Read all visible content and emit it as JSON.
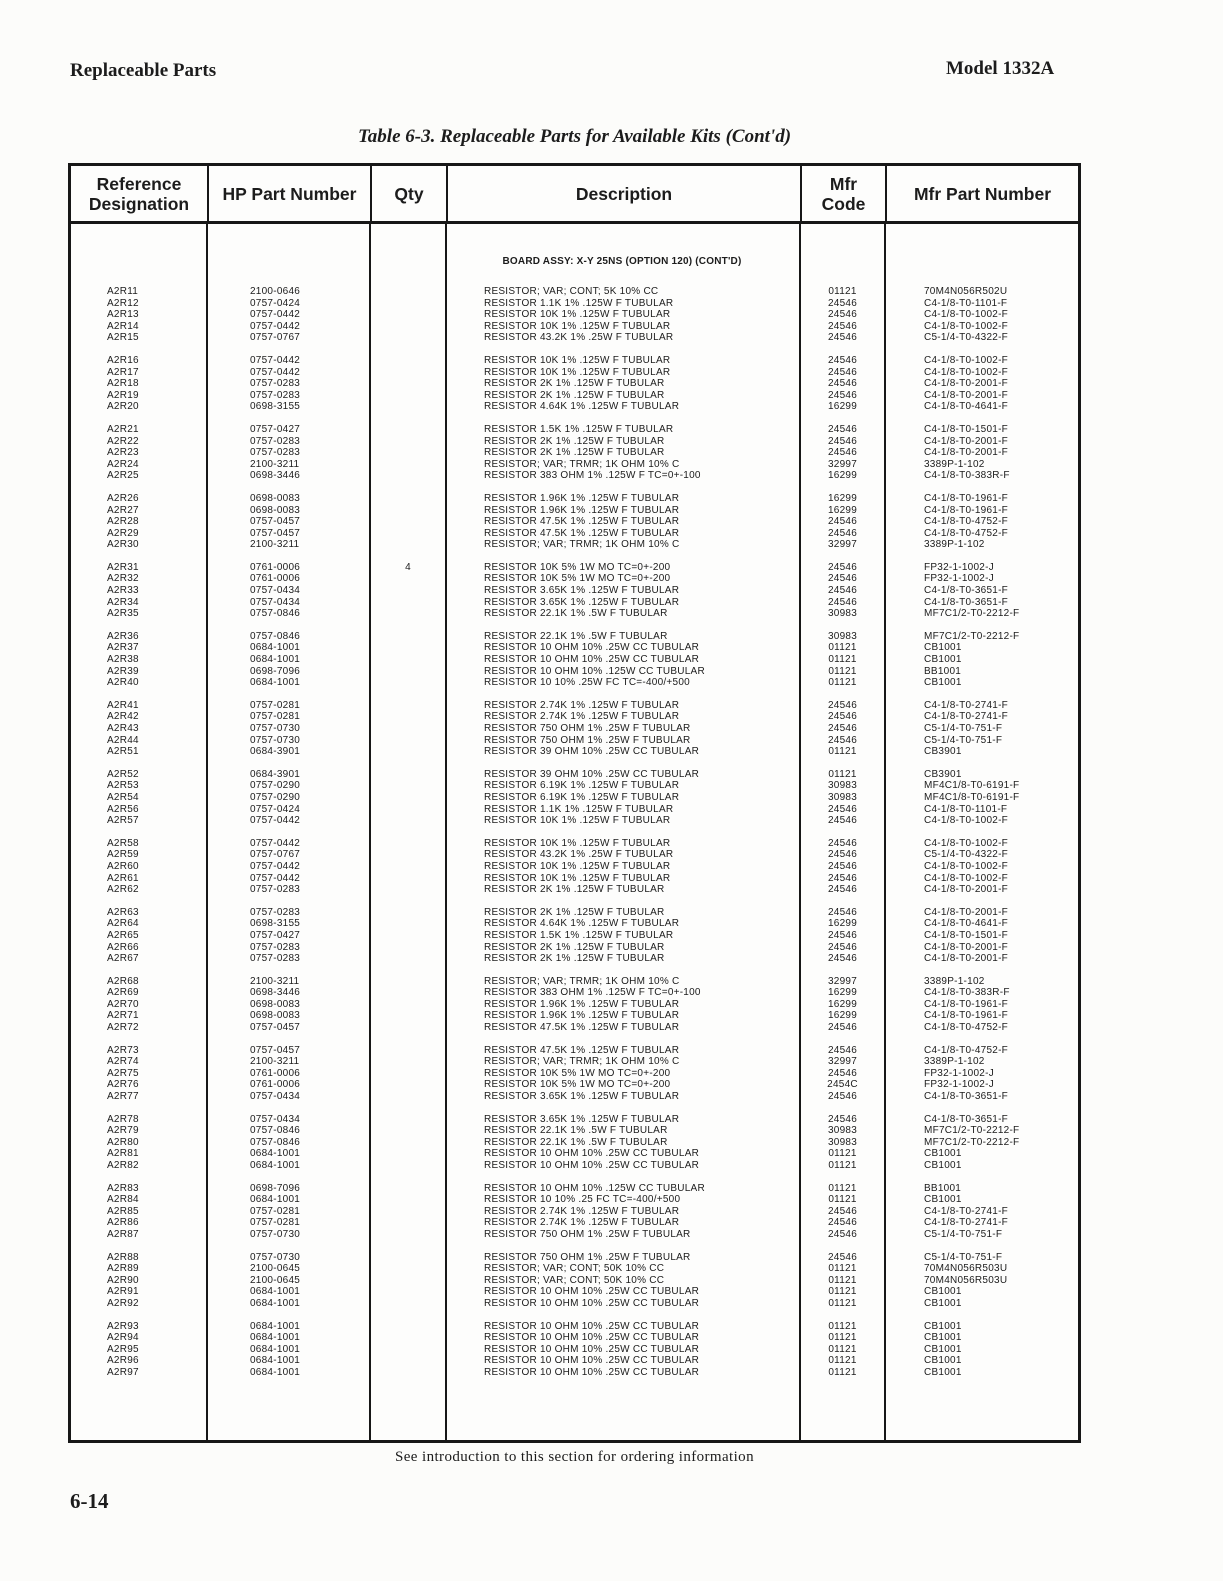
{
  "page": {
    "header_left": "Replaceable Parts",
    "header_right": "Model 1332A",
    "table_title": "Table 6-3. Replaceable Parts for Available Kits (Cont'd)",
    "footer_note": "See introduction to this section for ordering information",
    "page_number": "6-14"
  },
  "table": {
    "columns": [
      "Reference\nDesignation",
      "HP Part Number",
      "Qty",
      "Description",
      "Mfr\nCode",
      "Mfr Part Number"
    ],
    "section_header": "BOARD ASSY: X-Y 25NS (OPTION 120) (CONT'D)",
    "groups": [
      [
        [
          "A2R11",
          "2100-0646",
          "",
          "RESISTOR; VAR; CONT; 5K 10% CC",
          "01121",
          "70M4N056R502U"
        ],
        [
          "A2R12",
          "0757-0424",
          "",
          "RESISTOR 1.1K 1% .125W F TUBULAR",
          "24546",
          "C4-1/8-T0-1101-F"
        ],
        [
          "A2R13",
          "0757-0442",
          "",
          "RESISTOR 10K 1% .125W F TUBULAR",
          "24546",
          "C4-1/8-T0-1002-F"
        ],
        [
          "A2R14",
          "0757-0442",
          "",
          "RESISTOR 10K 1% .125W F TUBULAR",
          "24546",
          "C4-1/8-T0-1002-F"
        ],
        [
          "A2R15",
          "0757-0767",
          "",
          "RESISTOR 43.2K 1% .25W F TUBULAR",
          "24546",
          "C5-1/4-T0-4322-F"
        ]
      ],
      [
        [
          "A2R16",
          "0757-0442",
          "",
          "RESISTOR 10K 1% .125W F TUBULAR",
          "24546",
          "C4-1/8-T0-1002-F"
        ],
        [
          "A2R17",
          "0757-0442",
          "",
          "RESISTOR 10K 1% .125W F TUBULAR",
          "24546",
          "C4-1/8-T0-1002-F"
        ],
        [
          "A2R18",
          "0757-0283",
          "",
          "RESISTOR 2K 1% .125W F TUBULAR",
          "24546",
          "C4-1/8-T0-2001-F"
        ],
        [
          "A2R19",
          "0757-0283",
          "",
          "RESISTOR 2K 1% .125W F TUBULAR",
          "24546",
          "C4-1/8-T0-2001-F"
        ],
        [
          "A2R20",
          "0698-3155",
          "",
          "RESISTOR 4.64K 1% .125W F TUBULAR",
          "16299",
          "C4-1/8-T0-4641-F"
        ]
      ],
      [
        [
          "A2R21",
          "0757-0427",
          "",
          "RESISTOR 1.5K 1% .125W F TUBULAR",
          "24546",
          "C4-1/8-T0-1501-F"
        ],
        [
          "A2R22",
          "0757-0283",
          "",
          "RESISTOR 2K 1% .125W F TUBULAR",
          "24546",
          "C4-1/8-T0-2001-F"
        ],
        [
          "A2R23",
          "0757-0283",
          "",
          "RESISTOR 2K 1% .125W F TUBULAR",
          "24546",
          "C4-1/8-T0-2001-F"
        ],
        [
          "A2R24",
          "2100-3211",
          "",
          "RESISTOR; VAR; TRMR; 1K OHM 10% C",
          "32997",
          "3389P-1-102"
        ],
        [
          "A2R25",
          "0698-3446",
          "",
          "RESISTOR 383 OHM 1% .125W F TC=0+-100",
          "16299",
          "C4-1/8-T0-383R-F"
        ]
      ],
      [
        [
          "A2R26",
          "0698-0083",
          "",
          "RESISTOR 1.96K 1% .125W F TUBULAR",
          "16299",
          "C4-1/8-T0-1961-F"
        ],
        [
          "A2R27",
          "0698-0083",
          "",
          "RESISTOR 1.96K 1% .125W F TUBULAR",
          "16299",
          "C4-1/8-T0-1961-F"
        ],
        [
          "A2R28",
          "0757-0457",
          "",
          "RESISTOR 47.5K 1% .125W F TUBULAR",
          "24546",
          "C4-1/8-T0-4752-F"
        ],
        [
          "A2R29",
          "0757-0457",
          "",
          "RESISTOR 47.5K 1% .125W F TUBULAR",
          "24546",
          "C4-1/8-T0-4752-F"
        ],
        [
          "A2R30",
          "2100-3211",
          "",
          "RESISTOR; VAR; TRMR; 1K OHM 10% C",
          "32997",
          "3389P-1-102"
        ]
      ],
      [
        [
          "A2R31",
          "0761-0006",
          "4",
          "RESISTOR 10K 5% 1W MO TC=0+-200",
          "24546",
          "FP32-1-1002-J"
        ],
        [
          "A2R32",
          "0761-0006",
          "",
          "RESISTOR 10K 5% 1W MO TC=0+-200",
          "24546",
          "FP32-1-1002-J"
        ],
        [
          "A2R33",
          "0757-0434",
          "",
          "RESISTOR 3.65K 1% .125W F TUBULAR",
          "24546",
          "C4-1/8-T0-3651-F"
        ],
        [
          "A2R34",
          "0757-0434",
          "",
          "RESISTOR 3.65K 1% .125W F TUBULAR",
          "24546",
          "C4-1/8-T0-3651-F"
        ],
        [
          "A2R35",
          "0757-0846",
          "",
          "RESISTOR 22.1K 1% .5W F TUBULAR",
          "30983",
          "MF7C1/2-T0-2212-F"
        ]
      ],
      [
        [
          "A2R36",
          "0757-0846",
          "",
          "RESISTOR 22.1K 1% .5W F TUBULAR",
          "30983",
          "MF7C1/2-T0-2212-F"
        ],
        [
          "A2R37",
          "0684-1001",
          "",
          "RESISTOR 10 OHM 10% .25W CC TUBULAR",
          "01121",
          "CB1001"
        ],
        [
          "A2R38",
          "0684-1001",
          "",
          "RESISTOR 10 OHM 10% .25W CC TUBULAR",
          "01121",
          "CB1001"
        ],
        [
          "A2R39",
          "0698-7096",
          "",
          "RESISTOR 10 OHM 10% .125W CC TUBULAR",
          "01121",
          "BB1001"
        ],
        [
          "A2R40",
          "0684-1001",
          "",
          "RESISTOR 10 10% .25W FC TC=-400/+500",
          "01121",
          "CB1001"
        ]
      ],
      [
        [
          "A2R41",
          "0757-0281",
          "",
          "RESISTOR 2.74K 1% .125W F TUBULAR",
          "24546",
          "C4-1/8-T0-2741-F"
        ],
        [
          "A2R42",
          "0757-0281",
          "",
          "RESISTOR 2.74K 1% .125W F TUBULAR",
          "24546",
          "C4-1/8-T0-2741-F"
        ],
        [
          "A2R43",
          "0757-0730",
          "",
          "RESISTOR 750 OHM 1% .25W F TUBULAR",
          "24546",
          "C5-1/4-T0-751-F"
        ],
        [
          "A2R44",
          "0757-0730",
          "",
          "RESISTOR 750 OHM 1% .25W F TUBULAR",
          "24546",
          "C5-1/4-T0-751-F"
        ],
        [
          "A2R51",
          "0684-3901",
          "",
          "RESISTOR 39 OHM 10% .25W CC TUBULAR",
          "01121",
          "CB3901"
        ]
      ],
      [
        [
          "A2R52",
          "0684-3901",
          "",
          "RESISTOR 39 OHM 10% .25W CC TUBULAR",
          "01121",
          "CB3901"
        ],
        [
          "A2R53",
          "0757-0290",
          "",
          "RESISTOR 6.19K 1% .125W F TUBULAR",
          "30983",
          "MF4C1/8-T0-6191-F"
        ],
        [
          "A2R54",
          "0757-0290",
          "",
          "RESISTOR 6.19K 1% .125W F TUBULAR",
          "30983",
          "MF4C1/8-T0-6191-F"
        ],
        [
          "A2R56",
          "0757-0424",
          "",
          "RESISTOR 1.1K 1% .125W F TUBULAR",
          "24546",
          "C4-1/8-T0-1101-F"
        ],
        [
          "A2R57",
          "0757-0442",
          "",
          "RESISTOR 10K 1% .125W F TUBULAR",
          "24546",
          "C4-1/8-T0-1002-F"
        ]
      ],
      [
        [
          "A2R58",
          "0757-0442",
          "",
          "RESISTOR 10K 1% .125W F TUBULAR",
          "24546",
          "C4-1/8-T0-1002-F"
        ],
        [
          "A2R59",
          "0757-0767",
          "",
          "RESISTOR 43.2K 1% .25W F TUBULAR",
          "24546",
          "C5-1/4-T0-4322-F"
        ],
        [
          "A2R60",
          "0757-0442",
          "",
          "RESISTOR 10K 1% .125W F TUBULAR",
          "24546",
          "C4-1/8-T0-1002-F"
        ],
        [
          "A2R61",
          "0757-0442",
          "",
          "RESISTOR 10K 1% .125W F TUBULAR",
          "24546",
          "C4-1/8-T0-1002-F"
        ],
        [
          "A2R62",
          "0757-0283",
          "",
          "RESISTOR 2K 1% .125W F TUBULAR",
          "24546",
          "C4-1/8-T0-2001-F"
        ]
      ],
      [
        [
          "A2R63",
          "0757-0283",
          "",
          "RESISTOR 2K 1% .125W F TUBULAR",
          "24546",
          "C4-1/8-T0-2001-F"
        ],
        [
          "A2R64",
          "0698-3155",
          "",
          "RESISTOR 4.64K 1% .125W F TUBULAR",
          "16299",
          "C4-1/8-T0-4641-F"
        ],
        [
          "A2R65",
          "0757-0427",
          "",
          "RESISTOR 1.5K 1% .125W F TUBULAR",
          "24546",
          "C4-1/8-T0-1501-F"
        ],
        [
          "A2R66",
          "0757-0283",
          "",
          "RESISTOR 2K 1% .125W F TUBULAR",
          "24546",
          "C4-1/8-T0-2001-F"
        ],
        [
          "A2R67",
          "0757-0283",
          "",
          "RESISTOR 2K 1% .125W F TUBULAR",
          "24546",
          "C4-1/8-T0-2001-F"
        ]
      ],
      [
        [
          "A2R68",
          "2100-3211",
          "",
          "RESISTOR; VAR; TRMR; 1K OHM 10% C",
          "32997",
          "3389P-1-102"
        ],
        [
          "A2R69",
          "0698-3446",
          "",
          "RESISTOR 383 OHM 1% .125W F TC=0+-100",
          "16299",
          "C4-1/8-T0-383R-F"
        ],
        [
          "A2R70",
          "0698-0083",
          "",
          "RESISTOR 1.96K 1% .125W F TUBULAR",
          "16299",
          "C4-1/8-T0-1961-F"
        ],
        [
          "A2R71",
          "0698-0083",
          "",
          "RESISTOR 1.96K 1% .125W F TUBULAR",
          "16299",
          "C4-1/8-T0-1961-F"
        ],
        [
          "A2R72",
          "0757-0457",
          "",
          "RESISTOR 47.5K 1% .125W F TUBULAR",
          "24546",
          "C4-1/8-T0-4752-F"
        ]
      ],
      [
        [
          "A2R73",
          "0757-0457",
          "",
          "RESISTOR 47.5K 1% .125W F TUBULAR",
          "24546",
          "C4-1/8-T0-4752-F"
        ],
        [
          "A2R74",
          "2100-3211",
          "",
          "RESISTOR; VAR; TRMR; 1K OHM 10% C",
          "32997",
          "3389P-1-102"
        ],
        [
          "A2R75",
          "0761-0006",
          "",
          "RESISTOR 10K 5% 1W MO TC=0+-200",
          "24546",
          "FP32-1-1002-J"
        ],
        [
          "A2R76",
          "0761-0006",
          "",
          "RESISTOR 10K 5% 1W MO TC=0+-200",
          "2454C",
          "FP32-1-1002-J"
        ],
        [
          "A2R77",
          "0757-0434",
          "",
          "RESISTOR 3.65K 1% .125W F TUBULAR",
          "24546",
          "C4-1/8-T0-3651-F"
        ]
      ],
      [
        [
          "A2R78",
          "0757-0434",
          "",
          "RESISTOR 3.65K 1% .125W F TUBULAR",
          "24546",
          "C4-1/8-T0-3651-F"
        ],
        [
          "A2R79",
          "0757-0846",
          "",
          "RESISTOR 22.1K 1% .5W F TUBULAR",
          "30983",
          "MF7C1/2-T0-2212-F"
        ],
        [
          "A2R80",
          "0757-0846",
          "",
          "RESISTOR 22.1K 1% .5W F TUBULAR",
          "30983",
          "MF7C1/2-T0-2212-F"
        ],
        [
          "A2R81",
          "0684-1001",
          "",
          "RESISTOR 10 OHM 10% .25W CC TUBULAR",
          "01121",
          "CB1001"
        ],
        [
          "A2R82",
          "0684-1001",
          "",
          "RESISTOR 10 OHM 10% .25W CC TUBULAR",
          "01121",
          "CB1001"
        ]
      ],
      [
        [
          "A2R83",
          "0698-7096",
          "",
          "RESISTOR 10 OHM 10% .125W CC TUBULAR",
          "01121",
          "BB1001"
        ],
        [
          "A2R84",
          "0684-1001",
          "",
          "RESISTOR 10 10% .25 FC TC=-400/+500",
          "01121",
          "CB1001"
        ],
        [
          "A2R85",
          "0757-0281",
          "",
          "RESISTOR 2.74K 1% .125W F TUBULAR",
          "24546",
          "C4-1/8-T0-2741-F"
        ],
        [
          "A2R86",
          "0757-0281",
          "",
          "RESISTOR 2.74K 1% .125W F TUBULAR",
          "24546",
          "C4-1/8-T0-2741-F"
        ],
        [
          "A2R87",
          "0757-0730",
          "",
          "RESISTOR 750 OHM 1% .25W F TUBULAR",
          "24546",
          "C5-1/4-T0-751-F"
        ]
      ],
      [
        [
          "A2R88",
          "0757-0730",
          "",
          "RESISTOR 750 OHM 1% .25W F TUBULAR",
          "24546",
          "C5-1/4-T0-751-F"
        ],
        [
          "A2R89",
          "2100-0645",
          "",
          "RESISTOR; VAR; CONT; 50K 10% CC",
          "01121",
          "70M4N056R503U"
        ],
        [
          "A2R90",
          "2100-0645",
          "",
          "RESISTOR; VAR; CONT; 50K 10% CC",
          "01121",
          "70M4N056R503U"
        ],
        [
          "A2R91",
          "0684-1001",
          "",
          "RESISTOR 10 OHM 10% .25W CC TUBULAR",
          "01121",
          "CB1001"
        ],
        [
          "A2R92",
          "0684-1001",
          "",
          "RESISTOR 10 OHM 10% .25W CC TUBULAR",
          "01121",
          "CB1001"
        ]
      ],
      [
        [
          "A2R93",
          "0684-1001",
          "",
          "RESISTOR 10 OHM 10% .25W CC TUBULAR",
          "01121",
          "CB1001"
        ],
        [
          "A2R94",
          "0684-1001",
          "",
          "RESISTOR 10 OHM 10% .25W CC TUBULAR",
          "01121",
          "CB1001"
        ],
        [
          "A2R95",
          "0684-1001",
          "",
          "RESISTOR 10 OHM 10% .25W CC TUBULAR",
          "01121",
          "CB1001"
        ],
        [
          "A2R96",
          "0684-1001",
          "",
          "RESISTOR 10 OHM 10% .25W CC TUBULAR",
          "01121",
          "CB1001"
        ],
        [
          "A2R97",
          "0684-1001",
          "",
          "RESISTOR 10 OHM 10% .25W CC TUBULAR",
          "01121",
          "CB1001"
        ]
      ]
    ]
  }
}
